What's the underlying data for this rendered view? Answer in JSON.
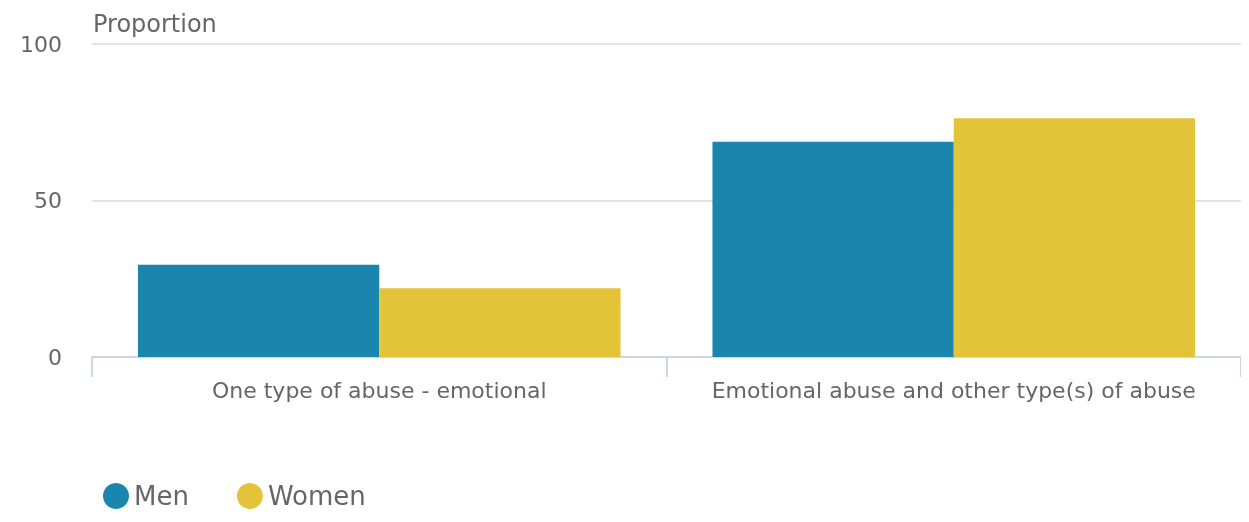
{
  "chart_data": {
    "type": "bar",
    "ylabel": "Proportion",
    "categories": [
      "One type of abuse - emotional",
      "Emotional abuse and other type(s) of abuse"
    ],
    "series": [
      {
        "name": "Men",
        "color": "#1a85ad",
        "values": [
          29.5,
          68.8
        ]
      },
      {
        "name": "Women",
        "color": "#e3c337",
        "values": [
          22,
          76.3
        ]
      }
    ],
    "ylim": [
      0,
      100
    ],
    "yticks": [
      0,
      50,
      100
    ],
    "grid": "y",
    "legend": "bottom left"
  }
}
